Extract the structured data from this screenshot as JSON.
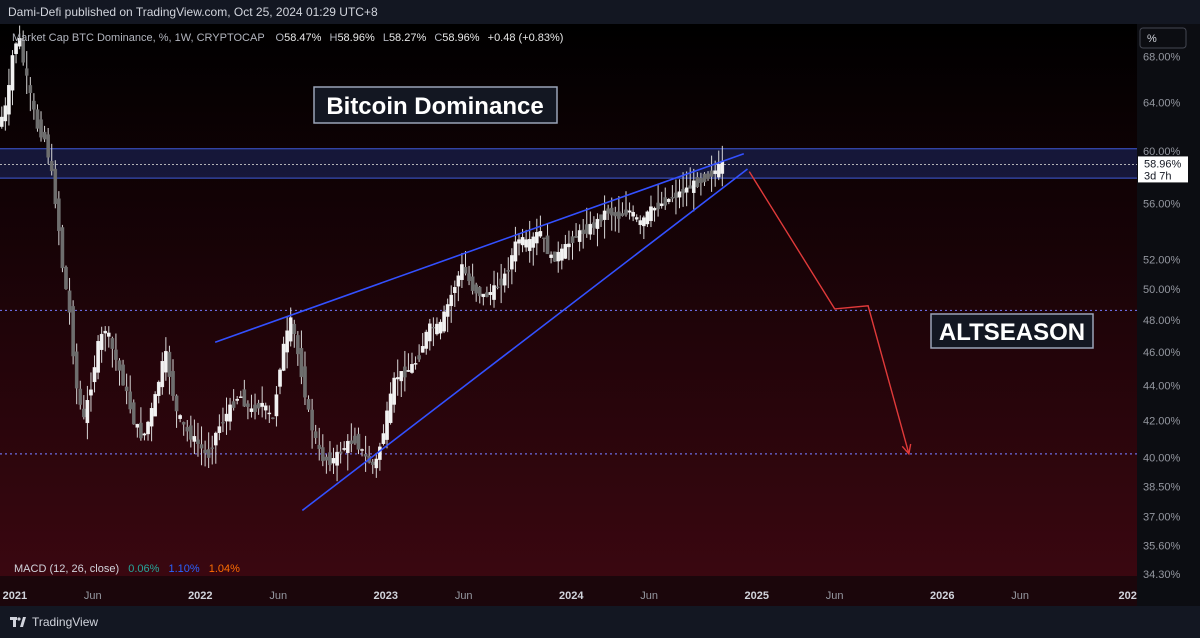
{
  "header": {
    "text": "Dami-Defi published on TradingView.com, Oct 25, 2024 01:29 UTC+8"
  },
  "footer": {
    "brand": "TradingView"
  },
  "chart_data": {
    "type": "candlestick",
    "symbol_line": "Market Cap BTC Dominance, %, 1W, CRYPTOCAP",
    "ohlc": {
      "O": "58.47%",
      "H": "58.96%",
      "L": "58.27%",
      "C": "58.96%",
      "change": "+0.48 (+0.83%)"
    },
    "title": "Bitcoin Dominance",
    "annotation": "ALTSEASON",
    "scale_button": "%",
    "price_labels": [
      "68.00%",
      "64.00%",
      "60.00%",
      "56.00%",
      "52.00%",
      "50.00%",
      "48.00%",
      "46.00%",
      "44.00%",
      "42.00%",
      "40.00%",
      "38.50%",
      "37.00%",
      "35.60%",
      "34.30%"
    ],
    "price_ticks": [
      68,
      64,
      60,
      56,
      52,
      50,
      48,
      46,
      44,
      42,
      40,
      38.5,
      37,
      35.6,
      34.3
    ],
    "current_price": {
      "value": "58.96%",
      "countdown": "3d 7h",
      "level": 58.96
    },
    "time_labels": [
      "2021",
      "Jun",
      "2022",
      "Jun",
      "2023",
      "Jun",
      "2024",
      "Jun",
      "2025",
      "Jun",
      "2026",
      "Jun",
      "202"
    ],
    "time_values": [
      2021.0,
      2021.42,
      2022.0,
      2022.42,
      2023.0,
      2023.42,
      2024.0,
      2024.42,
      2025.0,
      2025.42,
      2026.0,
      2026.42,
      2027.0
    ],
    "x_range": [
      2020.92,
      2027.05
    ],
    "y_range_log": [
      34.2,
      71.0
    ],
    "resistance_band": [
      57.9,
      60.2
    ],
    "support_lines": [
      48.6,
      40.2
    ],
    "wedge_upper": [
      [
        2022.08,
        46.6
      ],
      [
        2024.93,
        59.8
      ]
    ],
    "wedge_lower": [
      [
        2022.55,
        37.3
      ],
      [
        2024.95,
        58.6
      ]
    ],
    "projection": [
      [
        2024.96,
        58.4
      ],
      [
        2025.42,
        48.7
      ],
      [
        2025.6,
        48.9
      ],
      [
        2025.82,
        40.2
      ]
    ],
    "price_path": [
      [
        2020.92,
        62.0
      ],
      [
        2020.97,
        64.0
      ],
      [
        2021.0,
        68.5
      ],
      [
        2021.03,
        70.0
      ],
      [
        2021.06,
        67.0
      ],
      [
        2021.1,
        64.0
      ],
      [
        2021.13,
        62.0
      ],
      [
        2021.17,
        61.0
      ],
      [
        2021.2,
        59.0
      ],
      [
        2021.24,
        55.0
      ],
      [
        2021.27,
        51.0
      ],
      [
        2021.3,
        49.0
      ],
      [
        2021.34,
        44.0
      ],
      [
        2021.38,
        42.0
      ],
      [
        2021.42,
        44.0
      ],
      [
        2021.46,
        46.5
      ],
      [
        2021.5,
        47.5
      ],
      [
        2021.54,
        46.0
      ],
      [
        2021.6,
        44.0
      ],
      [
        2021.65,
        42.0
      ],
      [
        2021.7,
        41.0
      ],
      [
        2021.76,
        43.0
      ],
      [
        2021.82,
        46.0
      ],
      [
        2021.88,
        42.5
      ],
      [
        2021.93,
        41.5
      ],
      [
        2022.0,
        40.7
      ],
      [
        2022.05,
        40.0
      ],
      [
        2022.1,
        41.5
      ],
      [
        2022.16,
        42.5
      ],
      [
        2022.22,
        43.5
      ],
      [
        2022.28,
        42.5
      ],
      [
        2022.34,
        43.0
      ],
      [
        2022.4,
        42.0
      ],
      [
        2022.45,
        46.0
      ],
      [
        2022.5,
        48.0
      ],
      [
        2022.55,
        45.0
      ],
      [
        2022.6,
        42.0
      ],
      [
        2022.66,
        40.0
      ],
      [
        2022.72,
        39.8
      ],
      [
        2022.78,
        40.5
      ],
      [
        2022.84,
        41.0
      ],
      [
        2022.9,
        40.0
      ],
      [
        2022.95,
        39.5
      ],
      [
        2023.0,
        41.5
      ],
      [
        2023.06,
        44.5
      ],
      [
        2023.12,
        44.8
      ],
      [
        2023.18,
        45.5
      ],
      [
        2023.24,
        47.5
      ],
      [
        2023.3,
        47.5
      ],
      [
        2023.36,
        49.5
      ],
      [
        2023.42,
        51.5
      ],
      [
        2023.48,
        50.0
      ],
      [
        2023.54,
        49.5
      ],
      [
        2023.6,
        50.0
      ],
      [
        2023.66,
        51.0
      ],
      [
        2023.72,
        53.5
      ],
      [
        2023.78,
        53.0
      ],
      [
        2023.84,
        54.0
      ],
      [
        2023.9,
        52.0
      ],
      [
        2023.96,
        52.5
      ],
      [
        2024.02,
        53.5
      ],
      [
        2024.08,
        54.0
      ],
      [
        2024.14,
        54.5
      ],
      [
        2024.2,
        55.5
      ],
      [
        2024.26,
        55.0
      ],
      [
        2024.32,
        55.5
      ],
      [
        2024.38,
        54.5
      ],
      [
        2024.44,
        55.5
      ],
      [
        2024.5,
        56.0
      ],
      [
        2024.56,
        56.5
      ],
      [
        2024.62,
        57.0
      ],
      [
        2024.68,
        57.5
      ],
      [
        2024.74,
        58.0
      ],
      [
        2024.8,
        58.6
      ],
      [
        2024.82,
        58.96
      ]
    ],
    "macd": {
      "label": "MACD (12, 26, close)",
      "values": [
        "0.06%",
        "1.10%",
        "1.04%"
      ]
    },
    "colors": {
      "background_top": "#000000",
      "background_bottom": "#3a0710",
      "band": "#1e2a66",
      "band_line": "#3f5bdb",
      "wedge": "#3350ff",
      "projection": "#e03a3a",
      "dotted": "#6b6be0",
      "candle": "#d8d8d8"
    }
  }
}
